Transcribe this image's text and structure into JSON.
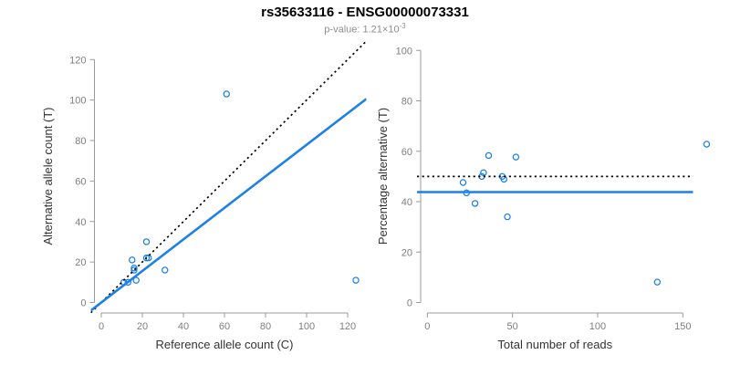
{
  "header": {
    "title": "rs35633116 - ENSG00000073331",
    "subtitle_label": "p-value: ",
    "p_value_base": "1.21×10",
    "p_value_exponent": "-3"
  },
  "colors": {
    "point_blue": "#1c80e8",
    "fit_line_blue": "#1c80e8",
    "dotted_black": "#000000",
    "axis_line_gray": "#9b9b9b",
    "tick_text_gray": "#7e7e7e",
    "axis_label_dark": "#333333",
    "title_black": "#000000",
    "subtitle_gray": "#8f8f8f"
  },
  "chart_data": [
    {
      "type": "scatter",
      "panel": "left",
      "xlabel": "Reference allele count (C)",
      "ylabel": "Alternative allele count (T)",
      "xlim": [
        0,
        120
      ],
      "ylim": [
        0,
        120
      ],
      "xticks": [
        0,
        20,
        40,
        60,
        80,
        100,
        120
      ],
      "yticks": [
        0,
        20,
        40,
        60,
        80,
        100,
        120
      ],
      "grid": false,
      "points": [
        [
          11,
          10
        ],
        [
          13,
          10
        ],
        [
          15,
          21
        ],
        [
          16,
          16
        ],
        [
          16,
          17
        ],
        [
          17,
          11
        ],
        [
          22,
          22
        ],
        [
          22,
          30
        ],
        [
          23,
          22
        ],
        [
          31,
          16
        ],
        [
          61,
          103
        ],
        [
          124,
          11
        ]
      ],
      "lines": [
        {
          "name": "identity-line",
          "style": "dotted",
          "kind": "ab",
          "slope": 1,
          "intercept": 0
        },
        {
          "name": "regression-line",
          "style": "solid",
          "kind": "ab",
          "slope": 0.779,
          "intercept": 0
        }
      ]
    },
    {
      "type": "scatter",
      "panel": "right",
      "xlabel": "Total number of reads",
      "ylabel": "Percentage alternative (T)",
      "xlim": [
        0,
        150
      ],
      "ylim": [
        0,
        100
      ],
      "xticks": [
        0,
        50,
        100,
        150
      ],
      "yticks": [
        0,
        20,
        40,
        60,
        80,
        100
      ],
      "grid": false,
      "points": [
        [
          21,
          47.6
        ],
        [
          23,
          43.5
        ],
        [
          28,
          39.3
        ],
        [
          32,
          50.0
        ],
        [
          33,
          51.5
        ],
        [
          36,
          58.3
        ],
        [
          44,
          50.0
        ],
        [
          45,
          48.9
        ],
        [
          47,
          34.0
        ],
        [
          52,
          57.7
        ],
        [
          135,
          8.1
        ],
        [
          164,
          62.8
        ]
      ],
      "lines": [
        {
          "name": "expected-50pct-line",
          "style": "dotted",
          "kind": "h",
          "y": 50
        },
        {
          "name": "mean-percentage-line",
          "style": "solid",
          "kind": "h",
          "y": 43.8
        }
      ]
    }
  ]
}
